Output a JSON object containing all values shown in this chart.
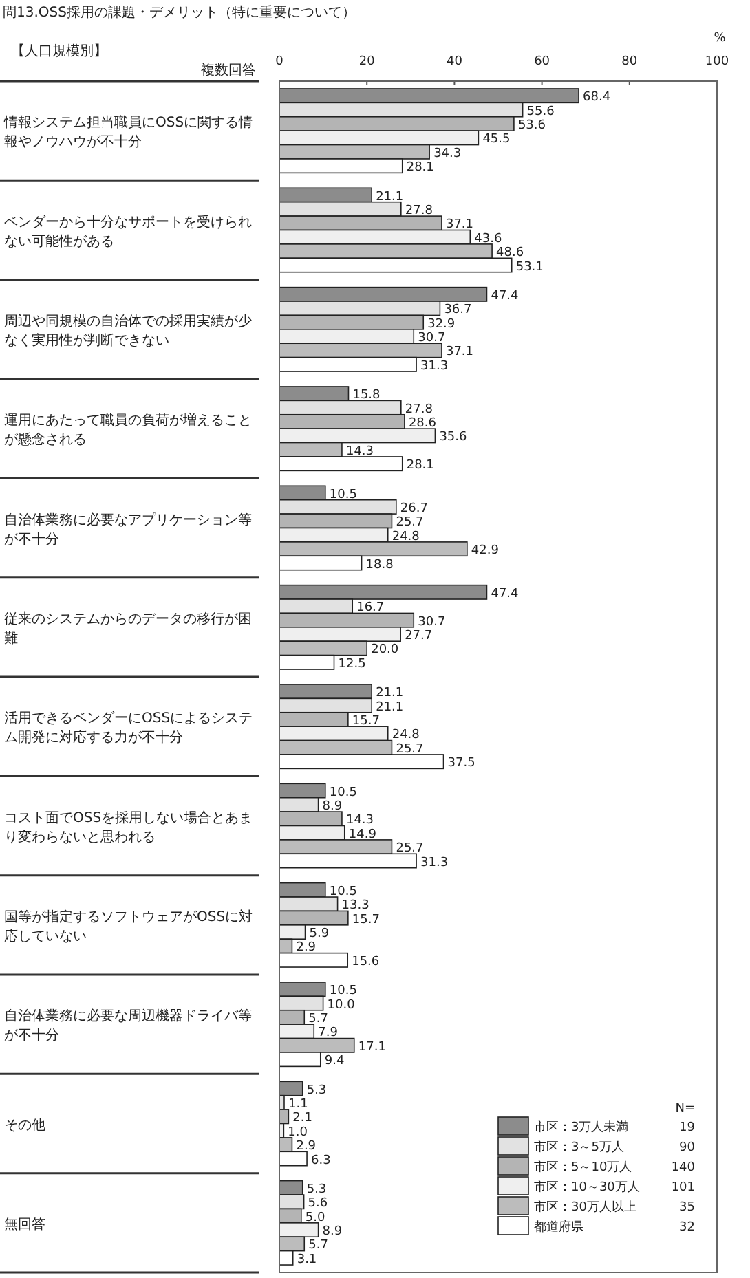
{
  "chart_data": {
    "type": "bar",
    "orientation": "horizontal",
    "title": "問13.OSS採用の課題・デメリット（特に重要について）",
    "xlabel": "%",
    "categories": [
      "情報システム担当職員にOSSに関する情報やノウハウが不十分",
      "ベンダーから十分なサポートを受けられない可能性がある",
      "周辺や同規模の自治体での採用実績が少なく実用性が判断できない",
      "運用にあたって職員の負荷が増えることが懸念される",
      "自治体業務に必要なアプリケーション等が不十分",
      "従来のシステムからのデータの移行が困難",
      "活用できるベンダーにOSSによるシステム開発に対応する力が不十分",
      "コスト面でOSSを採用しない場合とあまり変わらないと思われる",
      "国等が指定するソフトウェアがOSSに対応していない",
      "自治体業務に必要な周辺機器ドライバ等が不十分",
      "その他",
      "無回答"
    ],
    "series": [
      {
        "name": "市区：3万人未満",
        "color": "#8c8c8c",
        "values": [
          68.4,
          21.1,
          47.4,
          15.8,
          10.5,
          47.4,
          21.1,
          10.5,
          10.5,
          10.5,
          5.3,
          5.3
        ],
        "value_labels": [
          "68.4",
          "21.1",
          "47.4",
          "15.8",
          "10.5",
          "47.4",
          "21.1",
          "10.5",
          "10.5",
          "10.5",
          "5.3",
          "5.3"
        ]
      },
      {
        "name": "市区：3～5万人",
        "color": "#e2e2e2",
        "values": [
          55.6,
          27.8,
          36.7,
          27.8,
          26.7,
          16.7,
          21.1,
          8.9,
          13.3,
          10.0,
          1.1,
          5.6
        ],
        "value_labels": [
          "55.6",
          "27.8",
          "36.7",
          "27.8",
          "26.7",
          "16.7",
          "21.1",
          "8.9",
          "13.3",
          "10.0",
          "1.1",
          "5.6"
        ]
      },
      {
        "name": "市区：5～10万人",
        "color": "#b4b4b4",
        "values": [
          53.6,
          37.1,
          32.9,
          28.6,
          25.7,
          30.7,
          15.7,
          14.3,
          15.7,
          5.7,
          2.1,
          5.0
        ],
        "value_labels": [
          "53.6",
          "37.1",
          "32.9",
          "28.6",
          "25.7",
          "30.7",
          "15.7",
          "14.3",
          "15.7",
          "5.7",
          "2.1",
          "5.0"
        ]
      },
      {
        "name": "市区：10～30万人",
        "color": "#efefef",
        "values": [
          45.5,
          43.6,
          30.7,
          35.6,
          24.8,
          27.7,
          24.8,
          14.9,
          5.9,
          7.9,
          1.0,
          8.9
        ],
        "value_labels": [
          "45.5",
          "43.6",
          "30.7",
          "35.6",
          "24.8",
          "27.7",
          "24.8",
          "14.9",
          "5.9",
          "7.9",
          "1.0",
          "8.9"
        ]
      },
      {
        "name": "市区：30万人以上",
        "color": "#bcbcbc",
        "values": [
          34.3,
          48.6,
          37.1,
          14.3,
          42.9,
          20.0,
          25.7,
          25.7,
          2.9,
          17.1,
          2.9,
          5.7
        ],
        "value_labels": [
          "34.3",
          "48.6",
          "37.1",
          "14.3",
          "42.9",
          "20.0",
          "25.7",
          "25.7",
          "2.9",
          "17.1",
          "2.9",
          "5.7"
        ]
      },
      {
        "name": "都道府県",
        "color": "#ffffff",
        "values": [
          28.1,
          53.1,
          31.3,
          28.1,
          18.8,
          12.5,
          37.5,
          31.3,
          15.6,
          9.4,
          6.3,
          3.1
        ],
        "value_labels": [
          "28.1",
          "53.1",
          "31.3",
          "28.1",
          "18.8",
          "12.5",
          "37.5",
          "31.3",
          "15.6",
          "9.4",
          "6.3",
          "3.1"
        ]
      }
    ],
    "xlim": [
      0,
      100
    ],
    "xticks": [
      0,
      20,
      40,
      60,
      80,
      100
    ],
    "grid": false,
    "legend": "bottom right",
    "legend_title": "N=",
    "annotations": [
      "【人口規模別】",
      "複数回答",
      "19",
      "90",
      "140",
      "101",
      "35",
      "32"
    ]
  }
}
